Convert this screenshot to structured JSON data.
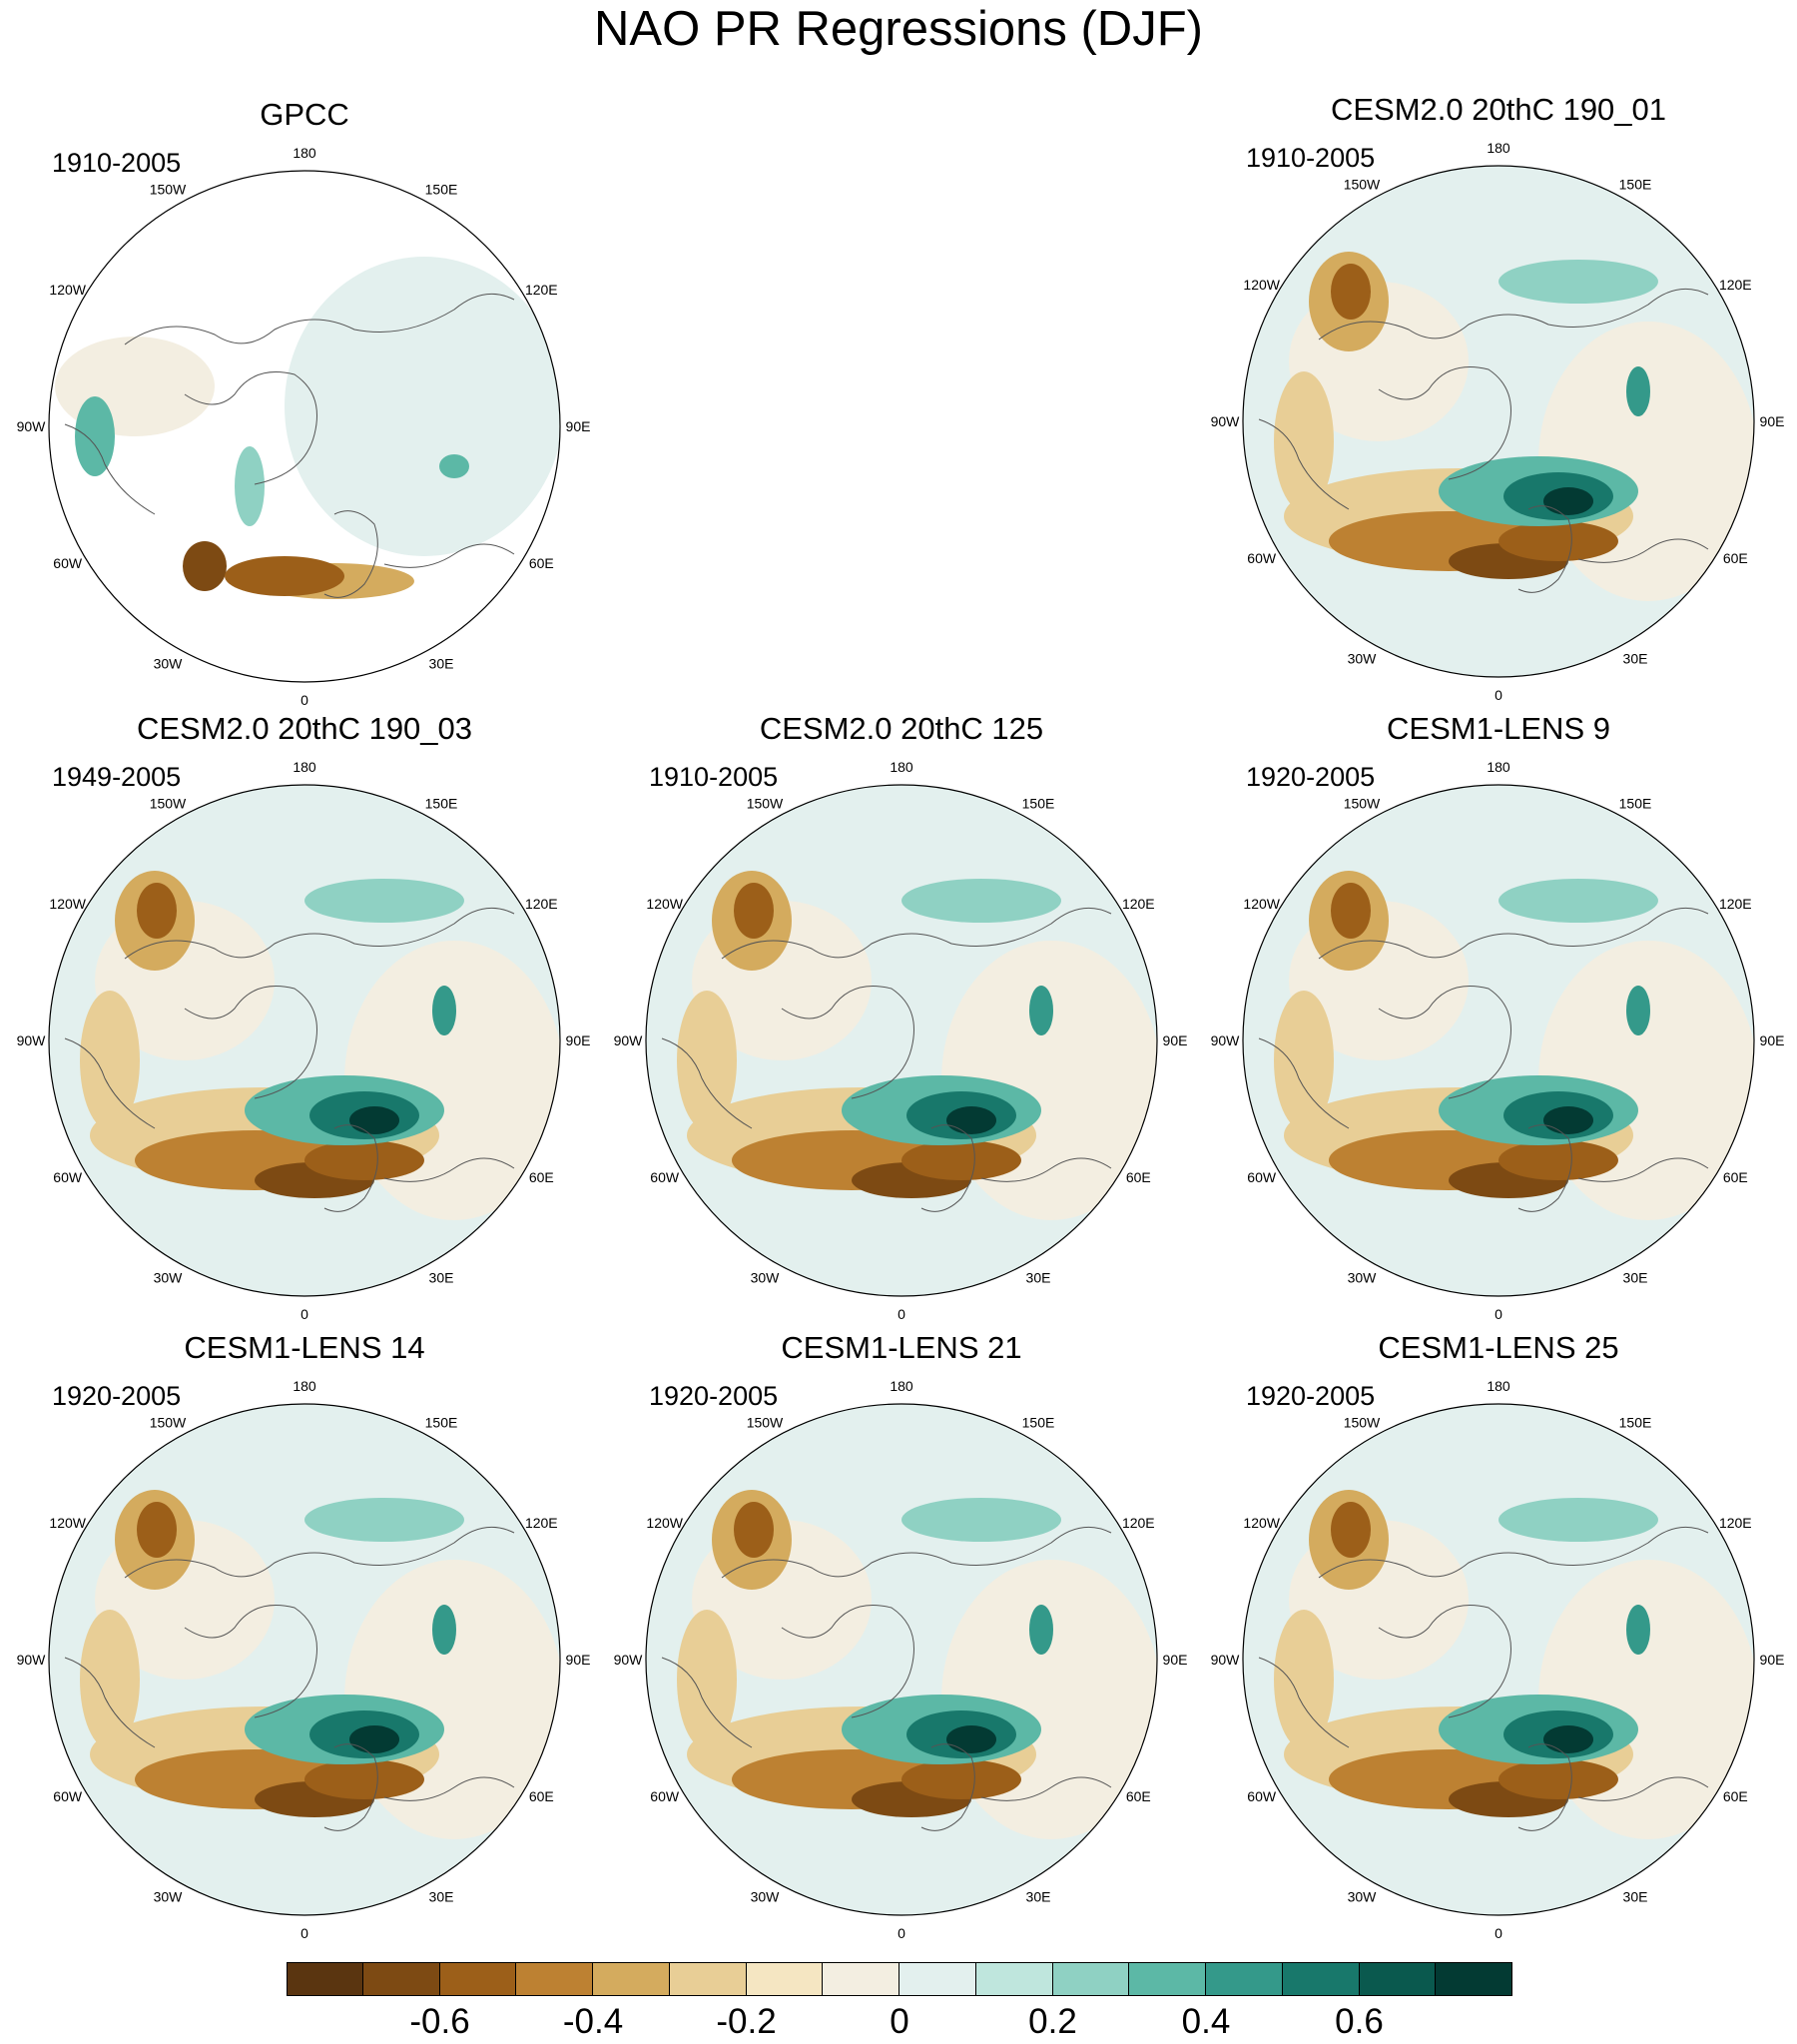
{
  "title": "NAO PR Regressions (DJF)",
  "lon_labels": [
    "180",
    "150E",
    "120E",
    "90E",
    "60E",
    "30E",
    "0",
    "30W",
    "60W",
    "90W",
    "120W",
    "150W"
  ],
  "panels": [
    {
      "id": "gpcc",
      "title": "GPCC",
      "years": "1910-2005",
      "type": "observations"
    },
    {
      "id": "cesm2-190-01",
      "title": "CESM2.0 20thC 190_01",
      "years": "1910-2005",
      "type": "model"
    },
    {
      "id": "cesm2-190-03",
      "title": "CESM2.0 20thC 190_03",
      "years": "1949-2005",
      "type": "model"
    },
    {
      "id": "cesm2-125",
      "title": "CESM2.0 20thC 125",
      "years": "1910-2005",
      "type": "model"
    },
    {
      "id": "cesm1-lens-9",
      "title": "CESM1-LENS 9",
      "years": "1920-2005",
      "type": "model"
    },
    {
      "id": "cesm1-lens-14",
      "title": "CESM1-LENS 14",
      "years": "1920-2005",
      "type": "model"
    },
    {
      "id": "cesm1-lens-21",
      "title": "CESM1-LENS 21",
      "years": "1920-2005",
      "type": "model"
    },
    {
      "id": "cesm1-lens-25",
      "title": "CESM1-LENS 25",
      "years": "1920-2005",
      "type": "model"
    }
  ],
  "colorbar": {
    "colors": [
      "#5a3510",
      "#7d4a13",
      "#9c5f19",
      "#bd8132",
      "#d4ab5e",
      "#e8ce96",
      "#f5e6c2",
      "#f3eee1",
      "#e3f0ee",
      "#bfe6dd",
      "#8fd1c3",
      "#5cb8a6",
      "#34998a",
      "#18786b",
      "#0a594e",
      "#033a33"
    ],
    "labels": [
      "-0.6",
      "-0.4",
      "-0.2",
      "0",
      "0.2",
      "0.4",
      "0.6"
    ],
    "label_box_index": [
      2,
      4,
      6,
      8,
      10,
      12,
      14
    ]
  }
}
